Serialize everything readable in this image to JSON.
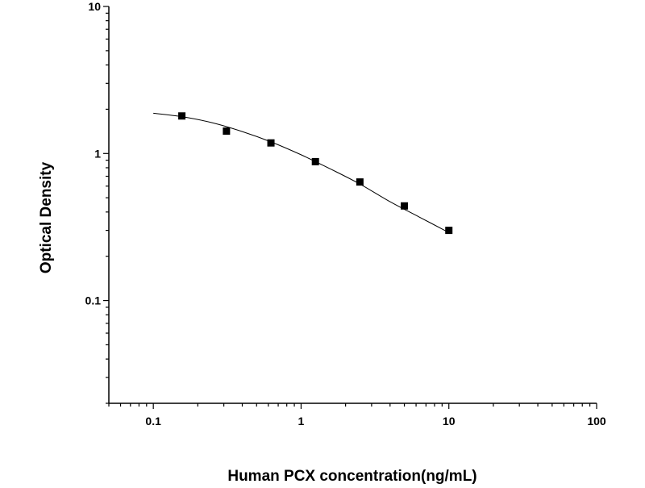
{
  "chart_data": {
    "type": "scatter",
    "title": "",
    "xlabel": "Human PCX concentration(ng/mL)",
    "ylabel": "Optical Density",
    "x_scale": "log",
    "y_scale": "log",
    "xlim": [
      0.05,
      100
    ],
    "ylim": [
      0.02,
      10
    ],
    "x_ticks": [
      {
        "value": 0.1,
        "label": "0.1"
      },
      {
        "value": 1,
        "label": "1"
      },
      {
        "value": 10,
        "label": "10"
      },
      {
        "value": 100,
        "label": "100"
      }
    ],
    "y_ticks": [
      {
        "value": 0.1,
        "label": "0.1"
      },
      {
        "value": 1,
        "label": "1"
      },
      {
        "value": 10,
        "label": "10"
      }
    ],
    "grid": false,
    "legend": "none",
    "series": [
      {
        "kind": "markers",
        "marker": "square",
        "color": "#000000",
        "points": [
          {
            "x": 0.156,
            "y": 1.8
          },
          {
            "x": 0.3125,
            "y": 1.42
          },
          {
            "x": 0.625,
            "y": 1.18
          },
          {
            "x": 1.25,
            "y": 0.88
          },
          {
            "x": 2.5,
            "y": 0.64
          },
          {
            "x": 5,
            "y": 0.44
          },
          {
            "x": 10,
            "y": 0.3
          }
        ]
      },
      {
        "kind": "fitted-curve",
        "color": "#000000",
        "points": [
          {
            "x": 0.1,
            "y": 1.88
          },
          {
            "x": 0.156,
            "y": 1.78
          },
          {
            "x": 0.25,
            "y": 1.62
          },
          {
            "x": 0.4,
            "y": 1.41
          },
          {
            "x": 0.625,
            "y": 1.2
          },
          {
            "x": 1,
            "y": 0.98
          },
          {
            "x": 1.6,
            "y": 0.78
          },
          {
            "x": 2.5,
            "y": 0.62
          },
          {
            "x": 4,
            "y": 0.47
          },
          {
            "x": 6.3,
            "y": 0.37
          },
          {
            "x": 10,
            "y": 0.29
          }
        ]
      }
    ]
  }
}
